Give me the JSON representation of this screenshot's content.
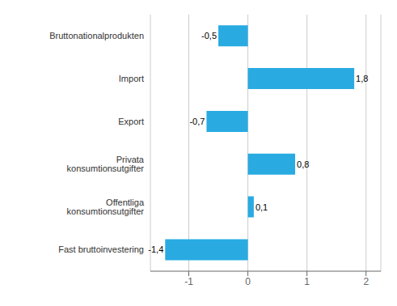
{
  "chart_data": {
    "type": "bar",
    "orientation": "horizontal",
    "categories": [
      "Fast bruttoinvestering",
      "Offentliga konsumtionsutgifter",
      "Privata konsumtionsutgifter",
      "Export",
      "Import",
      "Bruttonationalprodukten"
    ],
    "values": [
      -1.4,
      0.1,
      0.8,
      -0.7,
      1.8,
      -0.5
    ],
    "value_labels": [
      "-1,4",
      "0,1",
      "0,8",
      "-0,7",
      "1,8",
      "-0,5"
    ],
    "color": "#29ABE2",
    "xlim": [
      -1.65,
      2.25
    ],
    "xticks": [
      -1,
      0,
      1,
      2
    ],
    "grid": true,
    "data_labels": true
  }
}
